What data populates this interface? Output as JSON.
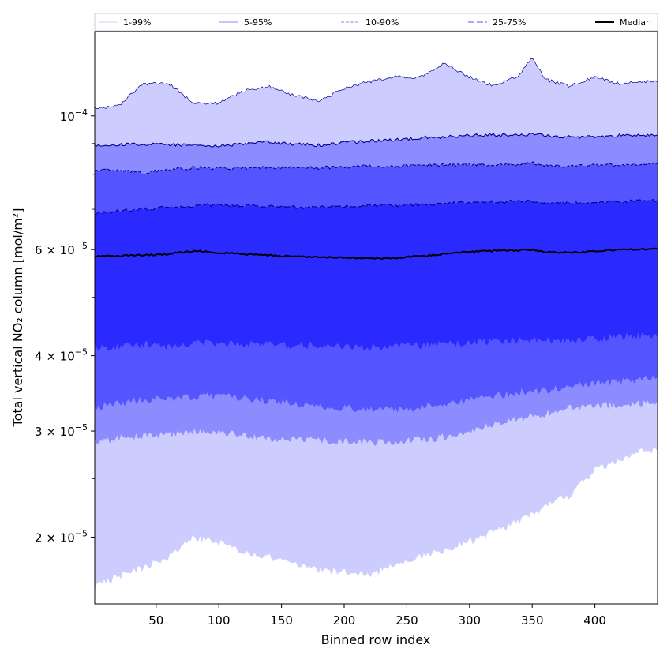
{
  "chart_data": {
    "type": "area",
    "xlabel": "Binned row index",
    "ylabel": "Total vertical NO₂ column [mol/m²]",
    "y_scale": "log",
    "xlim": [
      1,
      450
    ],
    "ylim": [
      1.55e-05,
      0.000138
    ],
    "x_ticks": [
      50,
      100,
      150,
      200,
      250,
      300,
      350,
      400
    ],
    "y_ticks": [
      {
        "value": 0.0001,
        "mantissa": "",
        "exponent": "−4",
        "base": "10"
      },
      {
        "value": 6e-05,
        "mantissa": "6 × ",
        "exponent": "−5",
        "base": "10"
      },
      {
        "value": 4e-05,
        "mantissa": "4 × ",
        "exponent": "−5",
        "base": "10"
      },
      {
        "value": 3e-05,
        "mantissa": "3 × ",
        "exponent": "−5",
        "base": "10"
      },
      {
        "value": 2e-05,
        "mantissa": "2 × ",
        "exponent": "−5",
        "base": "10"
      }
    ],
    "x": [
      1,
      20,
      40,
      60,
      80,
      100,
      120,
      140,
      160,
      180,
      200,
      220,
      240,
      260,
      280,
      300,
      320,
      340,
      350,
      360,
      380,
      400,
      420,
      440,
      450
    ],
    "bands": [
      {
        "name": "1-99%",
        "color": "#ccccff",
        "line_color": "#00008b",
        "dash": "",
        "lower": [
          1.65e-05,
          1.72e-05,
          1.78e-05,
          1.85e-05,
          2e-05,
          1.96e-05,
          1.88e-05,
          1.85e-05,
          1.8e-05,
          1.76e-05,
          1.75e-05,
          1.73e-05,
          1.8e-05,
          1.85e-05,
          1.9e-05,
          1.96e-05,
          2.05e-05,
          2.12e-05,
          2.18e-05,
          2.25e-05,
          2.35e-05,
          2.58e-05,
          2.7e-05,
          2.78e-05,
          2.8e-05
        ],
        "upper": [
          0.000103,
          0.000104,
          0.000113,
          0.000113,
          0.000105,
          0.000105,
          0.00011,
          0.000112,
          0.000108,
          0.000106,
          0.000111,
          0.000114,
          0.000116,
          0.000116,
          0.000122,
          0.000116,
          0.000112,
          0.000117,
          0.000125,
          0.000115,
          0.000112,
          0.000116,
          0.000113,
          0.000114,
          0.000114
        ]
      },
      {
        "name": "5-95%",
        "color": "#8c8cff",
        "line_color": "#00008b",
        "dash": "",
        "lower": [
          2.88e-05,
          2.92e-05,
          2.95e-05,
          2.96e-05,
          2.99e-05,
          2.99e-05,
          2.95e-05,
          2.92e-05,
          2.9e-05,
          2.9e-05,
          2.88e-05,
          2.87e-05,
          2.88e-05,
          2.9e-05,
          2.93e-05,
          3e-05,
          3.08e-05,
          3.15e-05,
          3.18e-05,
          3.2e-05,
          3.27e-05,
          3.3e-05,
          3.32e-05,
          3.33e-05,
          3.34e-05
        ],
        "upper": [
          8.95e-05,
          8.97e-05,
          8.98e-05,
          8.97e-05,
          8.94e-05,
          8.93e-05,
          8.98e-05,
          9.05e-05,
          8.98e-05,
          8.94e-05,
          9.03e-05,
          9.08e-05,
          9.12e-05,
          9.2e-05,
          9.23e-05,
          9.28e-05,
          9.3e-05,
          9.3e-05,
          9.32e-05,
          9.28e-05,
          9.22e-05,
          9.25e-05,
          9.28e-05,
          9.3e-05,
          9.32e-05
        ]
      },
      {
        "name": "10-90%",
        "color": "#5555ff",
        "line_color": "#00008b",
        "dash": "4,2",
        "lower": [
          3.27e-05,
          3.33e-05,
          3.38e-05,
          3.39e-05,
          3.42e-05,
          3.43e-05,
          3.4e-05,
          3.37e-05,
          3.33e-05,
          3.3e-05,
          3.28e-05,
          3.26e-05,
          3.26e-05,
          3.28e-05,
          3.32e-05,
          3.38e-05,
          3.43e-05,
          3.48e-05,
          3.5e-05,
          3.5e-05,
          3.55e-05,
          3.6e-05,
          3.63e-05,
          3.66e-05,
          3.68e-05
        ],
        "upper": [
          8.15e-05,
          8.1e-05,
          8.05e-05,
          8.15e-05,
          8.2e-05,
          8.18e-05,
          8.2e-05,
          8.22e-05,
          8.2e-05,
          8.2e-05,
          8.23e-05,
          8.25e-05,
          8.25e-05,
          8.28e-05,
          8.3e-05,
          8.3e-05,
          8.3e-05,
          8.32e-05,
          8.35e-05,
          8.28e-05,
          8.25e-05,
          8.27e-05,
          8.3e-05,
          8.33e-05,
          8.35e-05
        ]
      },
      {
        "name": "25-75%",
        "color": "#2a2aff",
        "line_color": "#00008b",
        "dash": "8,3",
        "lower": [
          4.12e-05,
          4.15e-05,
          4.18e-05,
          4.15e-05,
          4.2e-05,
          4.2e-05,
          4.18e-05,
          4.17e-05,
          4.16e-05,
          4.16e-05,
          4.15e-05,
          4.13e-05,
          4.14e-05,
          4.16e-05,
          4.18e-05,
          4.2e-05,
          4.23e-05,
          4.25e-05,
          4.26e-05,
          4.24e-05,
          4.22e-05,
          4.26e-05,
          4.3e-05,
          4.32e-05,
          4.33e-05
        ],
        "upper": [
          6.9e-05,
          6.95e-05,
          7e-05,
          7.05e-05,
          7.1e-05,
          7.12e-05,
          7.1e-05,
          7.08e-05,
          7.06e-05,
          7.05e-05,
          7.08e-05,
          7.1e-05,
          7.1e-05,
          7.12e-05,
          7.15e-05,
          7.18e-05,
          7.2e-05,
          7.22e-05,
          7.22e-05,
          7.18e-05,
          7.16e-05,
          7.18e-05,
          7.2e-05,
          7.24e-05,
          7.25e-05
        ]
      }
    ],
    "median": {
      "name": "Median",
      "color": "#000000",
      "values": [
        5.85e-05,
        5.86e-05,
        5.87e-05,
        5.9e-05,
        5.97e-05,
        5.93e-05,
        5.9e-05,
        5.87e-05,
        5.84e-05,
        5.83e-05,
        5.82e-05,
        5.8e-05,
        5.81e-05,
        5.85e-05,
        5.9e-05,
        5.95e-05,
        5.97e-05,
        5.99e-05,
        6e-05,
        5.95e-05,
        5.93e-05,
        5.96e-05,
        6e-05,
        6e-05,
        6.02e-05
      ]
    },
    "legend_position": "top",
    "grid": false
  }
}
